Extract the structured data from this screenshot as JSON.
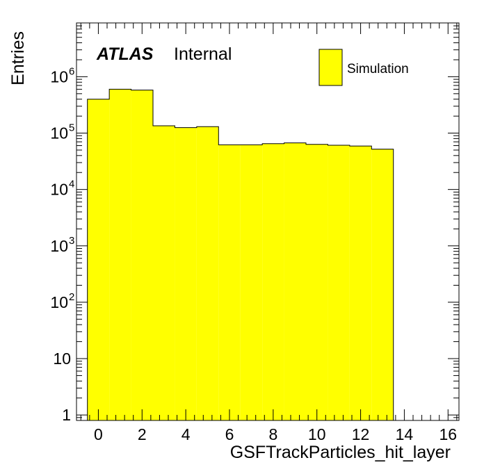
{
  "chart_data": {
    "type": "bar",
    "style": "histogram",
    "title": "",
    "xlabel": "GSFTrackParticles_hit_layer",
    "ylabel": "Entries",
    "ylog": true,
    "xlim": [
      -1,
      16.5
    ],
    "ylim": [
      0.8,
      9000000
    ],
    "bin_edges": [
      -0.5,
      0.5,
      1.5,
      2.5,
      3.5,
      4.5,
      5.5,
      6.5,
      7.5,
      8.5,
      9.5,
      10.5,
      11.5,
      12.5,
      13.5
    ],
    "values": [
      400000,
      600000,
      580000,
      135000,
      125000,
      130000,
      62000,
      62000,
      65000,
      67000,
      63000,
      61000,
      59000,
      52000
    ],
    "series": [
      {
        "name": "Simulation",
        "color": "#ffff00"
      }
    ],
    "x_ticks": [
      {
        "value": 0,
        "label": "0"
      },
      {
        "value": 2,
        "label": "2"
      },
      {
        "value": 4,
        "label": "4"
      },
      {
        "value": 6,
        "label": "6"
      },
      {
        "value": 8,
        "label": "8"
      },
      {
        "value": 10,
        "label": "10"
      },
      {
        "value": 12,
        "label": "12"
      },
      {
        "value": 14,
        "label": "14"
      },
      {
        "value": 16,
        "label": "16"
      }
    ],
    "y_ticks": [
      {
        "value": 1,
        "base": "1",
        "exp": ""
      },
      {
        "value": 10,
        "base": "10",
        "exp": ""
      },
      {
        "value": 100,
        "base": "10",
        "exp": "2"
      },
      {
        "value": 1000,
        "base": "10",
        "exp": "3"
      },
      {
        "value": 10000,
        "base": "10",
        "exp": "4"
      },
      {
        "value": 100000,
        "base": "10",
        "exp": "5"
      },
      {
        "value": 1000000,
        "base": "10",
        "exp": "6"
      }
    ],
    "atlas_label": "ATLAS",
    "internal_label": "Internal",
    "legend": {
      "position": "top-right",
      "entries": [
        "Simulation"
      ]
    },
    "grid": false
  }
}
